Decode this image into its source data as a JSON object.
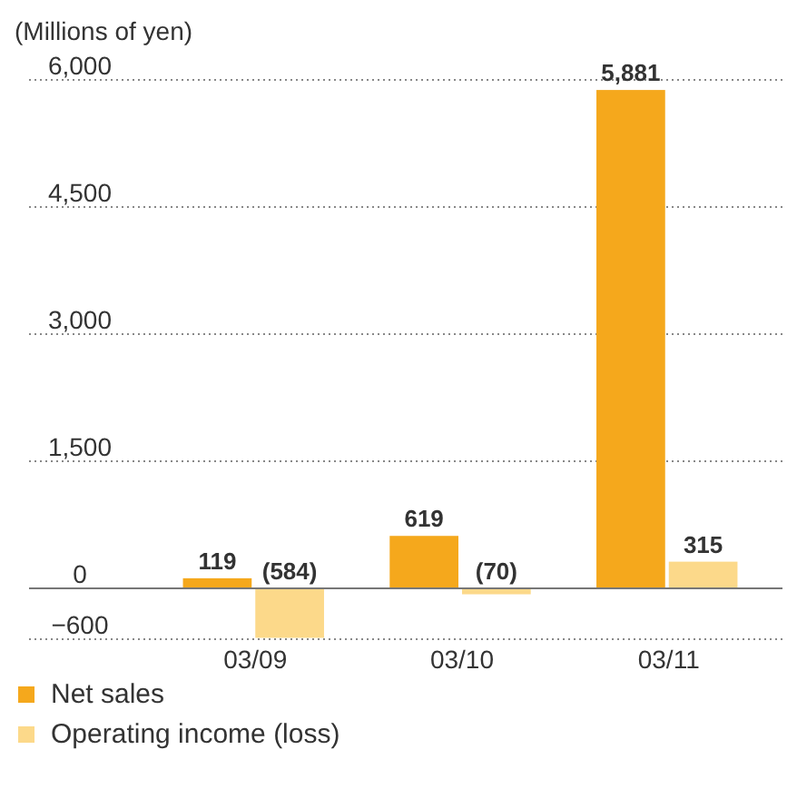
{
  "chart_data": {
    "type": "bar",
    "ylabel": "(Millions of yen)",
    "categories": [
      "03/09",
      "03/10",
      "03/11"
    ],
    "series": [
      {
        "name": "Net sales",
        "color": "#f5a81c",
        "values": [
          119,
          619,
          5881
        ],
        "value_labels": [
          "119",
          "619",
          "5,881"
        ]
      },
      {
        "name": "Operating income (loss)",
        "color": "#fcd98a",
        "values": [
          -584,
          -70,
          315
        ],
        "value_labels": [
          "(584)",
          "(70)",
          "315"
        ]
      }
    ],
    "ylim": [
      -600,
      6000
    ],
    "yticks": [
      {
        "value": -600,
        "label": "−600"
      },
      0,
      {
        "value": 1500,
        "label": "1,500"
      },
      {
        "value": 3000,
        "label": "3,000"
      },
      {
        "value": 4500,
        "label": "4,500"
      },
      {
        "value": 6000,
        "label": "6,000"
      }
    ],
    "grid": "y",
    "legend": "bottom"
  }
}
